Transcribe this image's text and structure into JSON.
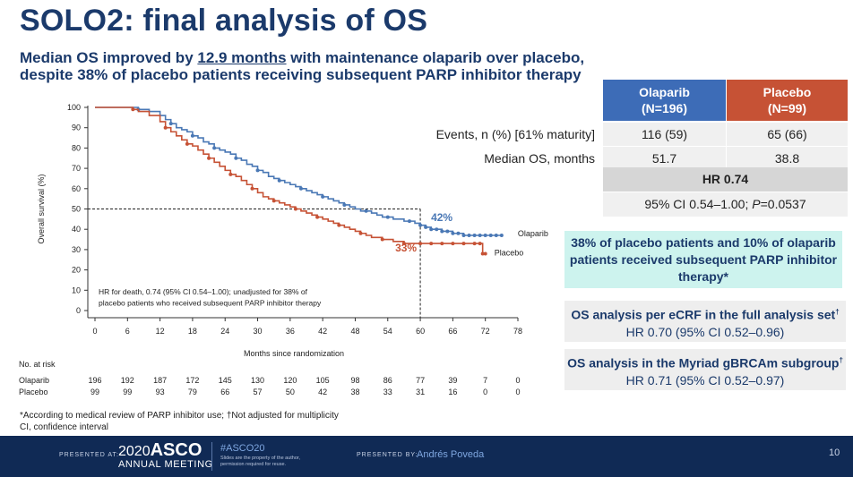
{
  "slide": {
    "title": "SOLO2: final analysis of OS",
    "subtitle_pre": "Median OS improved by ",
    "subtitle_highlight": "12.9 months",
    "subtitle_post": " with maintenance olaparib over placebo,",
    "subtitle_line2": "despite 38% of placebo patients receiving subsequent PARP inhibitor therapy"
  },
  "chart_data": {
    "type": "line",
    "ylabel": "Overall survival (%)",
    "xlabel": "Months since randomization",
    "xlim": [
      0,
      78
    ],
    "ylim": [
      0,
      100
    ],
    "x_ticks": [
      "0",
      "6",
      "12",
      "18",
      "24",
      "30",
      "36",
      "42",
      "48",
      "54",
      "60",
      "66",
      "72",
      "78"
    ],
    "y_ticks": [
      "0",
      "10",
      "20",
      "30",
      "40",
      "50",
      "60",
      "70",
      "80",
      "90",
      "100"
    ],
    "reference_line_y": 50,
    "reference_line_x": 60,
    "annotation_hr": "HR for death, 0.74 (95% CI 0.54–1.00); unadjusted for 38% of placebo patients who received subsequent PARP inhibitor therapy",
    "series": [
      {
        "name": "Olaparib",
        "color": "#4a78b5",
        "label_at_60": "42%",
        "x": [
          0,
          2,
          4,
          6,
          8,
          10,
          12,
          13,
          14,
          15,
          16,
          17,
          18,
          19,
          20,
          21,
          22,
          23,
          24,
          25,
          26,
          27,
          28,
          29,
          30,
          31,
          32,
          33,
          34,
          35,
          36,
          37,
          38,
          39,
          40,
          41,
          42,
          43,
          44,
          45,
          46,
          47,
          48,
          49,
          50,
          51,
          52,
          53,
          54,
          55,
          56,
          57,
          58,
          59,
          60,
          61,
          62,
          63,
          64,
          65,
          66,
          67,
          68,
          69,
          70,
          71,
          72,
          73,
          74,
          75
        ],
        "y": [
          100,
          100,
          100,
          100,
          99,
          98,
          96,
          94,
          92,
          90,
          89,
          88,
          86,
          85,
          83,
          82,
          80,
          79,
          78,
          77,
          75,
          74,
          72,
          71,
          69,
          68,
          66,
          65,
          64,
          63,
          62,
          61,
          60,
          59,
          58,
          57,
          56,
          55,
          54,
          53,
          52,
          51,
          50,
          49,
          49,
          48,
          47,
          46,
          46,
          45,
          45,
          44,
          44,
          43,
          42,
          41,
          40,
          40,
          39,
          39,
          38,
          38,
          37,
          37,
          37,
          37,
          37,
          37,
          37,
          37
        ]
      },
      {
        "name": "Placebo",
        "color": "#c65235",
        "label_at_60": "33%",
        "x": [
          0,
          2,
          4,
          6,
          7,
          8,
          10,
          12,
          13,
          14,
          15,
          16,
          17,
          18,
          19,
          20,
          21,
          22,
          23,
          24,
          25,
          26,
          27,
          28,
          29,
          30,
          31,
          32,
          33,
          34,
          35,
          36,
          37,
          38,
          39,
          40,
          41,
          42,
          43,
          44,
          45,
          46,
          47,
          48,
          49,
          50,
          51,
          52,
          53,
          54,
          55,
          56,
          57,
          58,
          59,
          60,
          62,
          64,
          66,
          68,
          70,
          71,
          71.5,
          72
        ],
        "y": [
          100,
          100,
          100,
          100,
          99,
          98,
          96,
          93,
          90,
          88,
          86,
          84,
          82,
          81,
          79,
          77,
          75,
          73,
          71,
          69,
          67,
          66,
          64,
          62,
          60,
          58,
          56,
          55,
          54,
          53,
          52,
          51,
          50,
          49,
          48,
          47,
          46,
          45,
          44,
          43,
          42,
          41,
          40,
          39,
          38,
          37,
          36,
          36,
          35,
          35,
          34,
          34,
          33,
          33,
          33,
          33,
          33,
          33,
          33,
          33,
          33,
          33,
          28,
          28
        ]
      }
    ],
    "at_risk": {
      "header": "No. at risk",
      "rows": [
        {
          "name": "Olaparib",
          "values": [
            "196",
            "192",
            "187",
            "172",
            "145",
            "130",
            "120",
            "105",
            "98",
            "86",
            "77",
            "39",
            "7",
            "0"
          ]
        },
        {
          "name": "Placebo",
          "values": [
            "99",
            "99",
            "93",
            "79",
            "66",
            "57",
            "50",
            "42",
            "38",
            "33",
            "31",
            "16",
            "0",
            "0"
          ]
        }
      ]
    }
  },
  "table": {
    "header_olaparib_1": "Olaparib",
    "header_olaparib_2": "(N=196)",
    "header_placebo_1": "Placebo",
    "header_placebo_2": "(N=99)",
    "rows": [
      {
        "label": "Events, n (%) [61% maturity]",
        "olaparib": "116 (59)",
        "placebo": "65 (66)"
      },
      {
        "label": "Median OS, months",
        "olaparib": "51.7",
        "placebo": "38.8"
      }
    ],
    "hr": "HR 0.74",
    "ci_pre": "95% CI 0.54–1.00; ",
    "ci_p_italic": "P",
    "ci_post": "=0.0537"
  },
  "callouts": {
    "teal": "38% of placebo patients and 10% of olaparib patients received subsequent PARP inhibitor therapy*",
    "box1_title": "OS analysis per eCRF in the full analysis set",
    "box1_sup": "†",
    "box1_value": "HR 0.70 (95% CI 0.52–0.96)",
    "box2_title": "OS analysis in the Myriad gBRCAm subgroup",
    "box2_sup": "†",
    "box2_value": "HR 0.71 (95% CI 0.52–0.97)"
  },
  "footnote": {
    "line1": "*According to medical review of PARP inhibitor use; †Not adjusted for multiplicity",
    "line2": "CI, confidence interval"
  },
  "footer": {
    "presented_at": "PRESENTED AT:",
    "asco_year": "2020",
    "asco_name": "ASCO",
    "annual_meeting": "ANNUAL MEETING",
    "hashtag": "#ASCO20",
    "property_note": "Slides are the property of the author, permission required for reuse.",
    "presented_by": "PRESENTED BY:",
    "presenter": "Andrés Poveda",
    "page_number": "10",
    "color_bg": "#102a55"
  }
}
